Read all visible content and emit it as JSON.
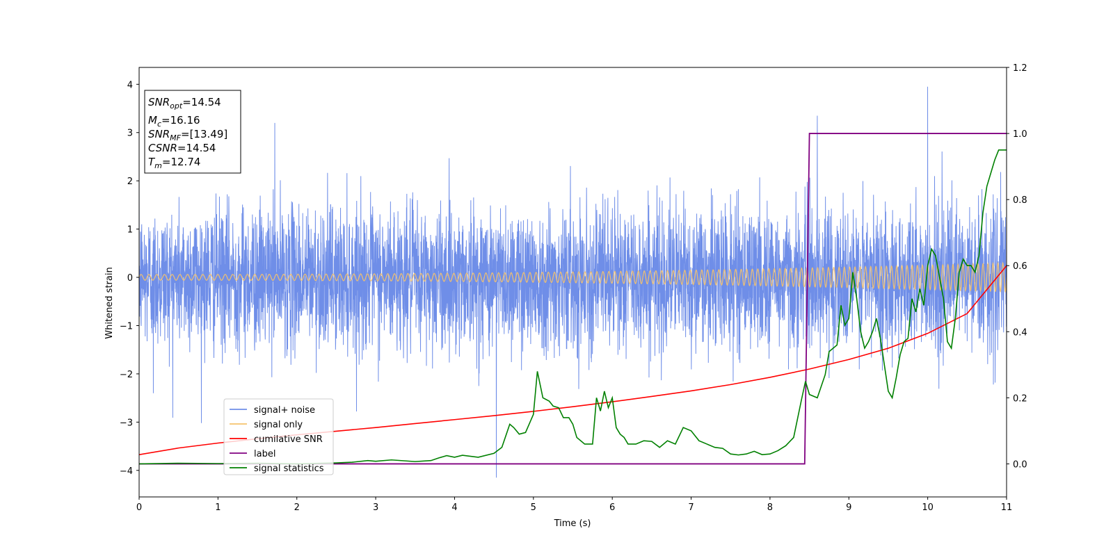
{
  "chart_data": {
    "type": "line",
    "xlabel": "Time (s)",
    "ylabel": "Whitened strain",
    "xlim": [
      0,
      11
    ],
    "ylim_left": [
      -4.55,
      4.35
    ],
    "ylim_right": [
      -0.1,
      1.2
    ],
    "x_ticks": [
      "0",
      "1",
      "2",
      "3",
      "4",
      "5",
      "6",
      "7",
      "8",
      "9",
      "10",
      "11"
    ],
    "y_ticks_left": [
      "−4",
      "−3",
      "−2",
      "−1",
      "0",
      "1",
      "2",
      "3",
      "4"
    ],
    "y_ticks_right": [
      "0.0",
      "0.2",
      "0.4",
      "0.6",
      "0.8",
      "1.0",
      "1.2"
    ],
    "legend_position": "lower-left",
    "annotations": {
      "snr_opt": {
        "main": "SNR",
        "sub": "opt",
        "value": "=14.54"
      },
      "mc": {
        "main": "M",
        "sub": "c",
        "value": "=16.16"
      },
      "snr_mf": {
        "main": "SNR",
        "sub": "MF",
        "value": "=[13.49]"
      },
      "csnr": {
        "main": "CSNR",
        "sub": "",
        "value": "=14.54"
      },
      "tm": {
        "main": "T",
        "sub": "m",
        "value": "=12.74"
      }
    },
    "series": [
      {
        "name": "signal+ noise",
        "axis": "left",
        "color": "#6f8ee8",
        "description_values": {
          "noise_sigma": 0.72,
          "notable_peaks": [
            [
              8.6,
              3.35
            ],
            [
              10.0,
              3.95
            ],
            [
              1.72,
              3.2
            ],
            [
              4.53,
              -4.15
            ],
            [
              0.18,
              -2.4
            ]
          ]
        }
      },
      {
        "name": "signal only",
        "axis": "left",
        "color": "#f5c26b",
        "description_values": {
          "amp_start": 0.06,
          "amp_end": 0.3,
          "freq_start_hz": 10,
          "freq_end_hz": 16
        }
      },
      {
        "name": "cumilative SNR",
        "axis": "right",
        "color": "#ff0000",
        "x": [
          0,
          0.5,
          1,
          1.5,
          2,
          2.5,
          3,
          3.5,
          4,
          4.5,
          5,
          5.5,
          6,
          6.5,
          7,
          7.5,
          8,
          8.5,
          9,
          9.5,
          10,
          10.5,
          11
        ],
        "y": [
          0.028,
          0.048,
          0.063,
          0.076,
          0.088,
          0.099,
          0.11,
          0.122,
          0.134,
          0.146,
          0.159,
          0.173,
          0.188,
          0.204,
          0.221,
          0.24,
          0.262,
          0.287,
          0.316,
          0.35,
          0.395,
          0.455,
          0.6
        ]
      },
      {
        "name": "label",
        "axis": "right",
        "color": "#800080",
        "x": [
          0,
          8.44,
          8.5,
          11
        ],
        "y": [
          0,
          0,
          1,
          1
        ]
      },
      {
        "name": "signal statistics",
        "axis": "right",
        "color": "#008000",
        "x": [
          0,
          0.5,
          1,
          1.5,
          2,
          2.5,
          2.7,
          2.9,
          3.0,
          3.2,
          3.5,
          3.7,
          3.8,
          3.9,
          4.0,
          4.1,
          4.3,
          4.5,
          4.6,
          4.7,
          4.75,
          4.82,
          4.9,
          5.0,
          5.05,
          5.12,
          5.2,
          5.25,
          5.32,
          5.38,
          5.45,
          5.5,
          5.55,
          5.65,
          5.75,
          5.8,
          5.85,
          5.9,
          5.95,
          6.0,
          6.05,
          6.1,
          6.15,
          6.2,
          6.3,
          6.4,
          6.5,
          6.6,
          6.7,
          6.8,
          6.9,
          7.0,
          7.1,
          7.2,
          7.3,
          7.4,
          7.5,
          7.6,
          7.7,
          7.8,
          7.9,
          8.0,
          8.1,
          8.2,
          8.3,
          8.4,
          8.45,
          8.5,
          8.6,
          8.7,
          8.75,
          8.8,
          8.85,
          8.9,
          8.95,
          9.0,
          9.05,
          9.1,
          9.15,
          9.2,
          9.25,
          9.3,
          9.35,
          9.4,
          9.45,
          9.5,
          9.55,
          9.6,
          9.65,
          9.7,
          9.75,
          9.8,
          9.85,
          9.9,
          9.95,
          10.0,
          10.05,
          10.1,
          10.2,
          10.25,
          10.3,
          10.35,
          10.4,
          10.45,
          10.5,
          10.55,
          10.6,
          10.65,
          10.7,
          10.75,
          10.8,
          10.85,
          10.9,
          11.0
        ],
        "y": [
          0.0,
          0.002,
          0.001,
          0.002,
          0.0,
          0.003,
          0.005,
          0.01,
          0.008,
          0.012,
          0.007,
          0.01,
          0.018,
          0.025,
          0.02,
          0.026,
          0.02,
          0.032,
          0.05,
          0.12,
          0.11,
          0.09,
          0.095,
          0.15,
          0.28,
          0.2,
          0.19,
          0.175,
          0.17,
          0.14,
          0.14,
          0.12,
          0.08,
          0.06,
          0.06,
          0.2,
          0.16,
          0.22,
          0.17,
          0.2,
          0.11,
          0.09,
          0.08,
          0.06,
          0.06,
          0.07,
          0.068,
          0.05,
          0.07,
          0.06,
          0.11,
          0.1,
          0.07,
          0.06,
          0.05,
          0.047,
          0.03,
          0.027,
          0.03,
          0.038,
          0.028,
          0.03,
          0.04,
          0.055,
          0.08,
          0.195,
          0.25,
          0.21,
          0.2,
          0.27,
          0.34,
          0.35,
          0.36,
          0.48,
          0.42,
          0.44,
          0.58,
          0.5,
          0.4,
          0.35,
          0.37,
          0.4,
          0.44,
          0.38,
          0.3,
          0.22,
          0.2,
          0.26,
          0.33,
          0.37,
          0.38,
          0.5,
          0.46,
          0.53,
          0.48,
          0.6,
          0.65,
          0.63,
          0.5,
          0.37,
          0.35,
          0.44,
          0.58,
          0.62,
          0.6,
          0.6,
          0.58,
          0.63,
          0.76,
          0.84,
          0.88,
          0.92,
          0.95,
          0.95
        ]
      }
    ]
  }
}
